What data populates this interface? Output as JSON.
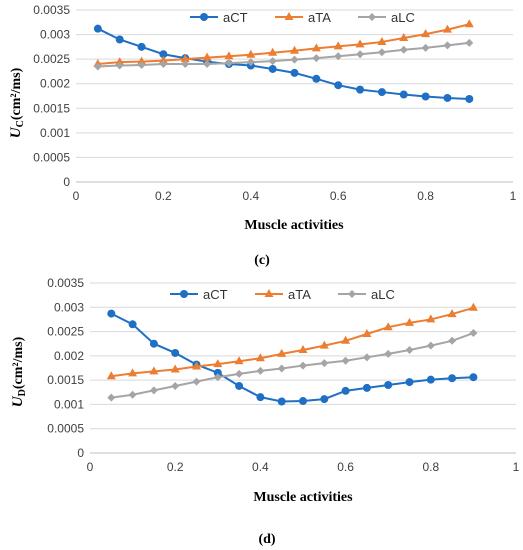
{
  "chart_data": [
    {
      "type": "line",
      "panel_label": "(c)",
      "ylabel_main": "U",
      "ylabel_sub": "C",
      "ylabel_rest": "(cm²/ms)",
      "xlabel": "Muscle activities",
      "xlim": [
        0,
        1
      ],
      "ylim": [
        0,
        0.0035
      ],
      "xticks": [
        "0",
        "0.2",
        "0.4",
        "0.6",
        "0.8",
        "1"
      ],
      "xtick_values": [
        0,
        0.2,
        0.4,
        0.6,
        0.8,
        1
      ],
      "yticks": [
        "0",
        "0.0005",
        "0.001",
        "0.0015",
        "0.002",
        "0.0025",
        "0.003",
        "0.0035"
      ],
      "ytick_values": [
        0,
        0.0005,
        0.001,
        0.0015,
        0.002,
        0.0025,
        0.003,
        0.0035
      ],
      "grid": "horizontal",
      "legend_position": "top-right",
      "x": [
        0.05,
        0.1,
        0.15,
        0.2,
        0.25,
        0.3,
        0.35,
        0.4,
        0.45,
        0.5,
        0.55,
        0.6,
        0.65,
        0.7,
        0.75,
        0.8,
        0.85,
        0.9
      ],
      "series": [
        {
          "name": "aCT",
          "color": "#1f6fc5",
          "marker": "circle",
          "values": [
            0.00312,
            0.0029,
            0.00275,
            0.0026,
            0.00252,
            0.00245,
            0.0024,
            0.00237,
            0.0023,
            0.00222,
            0.0021,
            0.00197,
            0.00188,
            0.00183,
            0.00178,
            0.00174,
            0.00171,
            0.00169
          ]
        },
        {
          "name": "aTA",
          "color": "#ed7d31",
          "marker": "triangle",
          "values": [
            0.0024,
            0.00244,
            0.00245,
            0.00247,
            0.0025,
            0.00253,
            0.00256,
            0.00259,
            0.00263,
            0.00267,
            0.00272,
            0.00276,
            0.0028,
            0.00285,
            0.00293,
            0.00301,
            0.0031,
            0.00321
          ]
        },
        {
          "name": "aLC",
          "color": "#a5a5a5",
          "marker": "diamond",
          "values": [
            0.00235,
            0.00237,
            0.00238,
            0.0024,
            0.0024,
            0.0024,
            0.00242,
            0.00244,
            0.00246,
            0.00249,
            0.00252,
            0.00256,
            0.0026,
            0.00264,
            0.00269,
            0.00273,
            0.00278,
            0.00283
          ]
        }
      ]
    },
    {
      "type": "line",
      "panel_label": "(d)",
      "ylabel_main": "U",
      "ylabel_sub": "D",
      "ylabel_rest": "(cm²/ms)",
      "xlabel": "Muscle activities",
      "xlim": [
        0,
        1
      ],
      "ylim": [
        0,
        0.0035
      ],
      "xticks": [
        "0",
        "0.2",
        "0.4",
        "0.6",
        "0.8",
        "1"
      ],
      "xtick_values": [
        0,
        0.2,
        0.4,
        0.6,
        0.8,
        1
      ],
      "yticks": [
        "0",
        "0.0005",
        "0.001",
        "0.0015",
        "0.002",
        "0.0025",
        "0.003",
        "0.0035"
      ],
      "ytick_values": [
        0,
        0.0005,
        0.001,
        0.0015,
        0.002,
        0.0025,
        0.003,
        0.0035
      ],
      "grid": "horizontal",
      "legend_position": "top-right",
      "x": [
        0.05,
        0.1,
        0.15,
        0.2,
        0.25,
        0.3,
        0.35,
        0.4,
        0.45,
        0.5,
        0.55,
        0.6,
        0.65,
        0.7,
        0.75,
        0.8,
        0.85,
        0.9
      ],
      "series": [
        {
          "name": "aCT",
          "color": "#1f6fc5",
          "marker": "circle",
          "values": [
            0.00287,
            0.00265,
            0.00225,
            0.00206,
            0.00182,
            0.00165,
            0.00138,
            0.00115,
            0.00106,
            0.00107,
            0.00111,
            0.00128,
            0.00134,
            0.0014,
            0.00146,
            0.00151,
            0.00154,
            0.00156
          ]
        },
        {
          "name": "aTA",
          "color": "#ed7d31",
          "marker": "triangle",
          "values": [
            0.00158,
            0.00164,
            0.00168,
            0.00172,
            0.00178,
            0.00183,
            0.00189,
            0.00195,
            0.00204,
            0.00212,
            0.00221,
            0.00231,
            0.00245,
            0.00259,
            0.00268,
            0.00275,
            0.00286,
            0.00299
          ]
        },
        {
          "name": "aLC",
          "color": "#a5a5a5",
          "marker": "diamond",
          "values": [
            0.00114,
            0.0012,
            0.00129,
            0.00138,
            0.00147,
            0.00156,
            0.00163,
            0.00169,
            0.00174,
            0.0018,
            0.00185,
            0.0019,
            0.00197,
            0.00204,
            0.00212,
            0.00221,
            0.00231,
            0.00247
          ]
        }
      ]
    }
  ]
}
